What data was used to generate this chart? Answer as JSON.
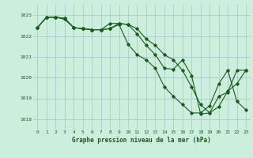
{
  "title": "Graphe pression niveau de la mer (hPa)",
  "bg_color": "#cceedd",
  "grid_color": "#aacccc",
  "line_color": "#1a5c1a",
  "ylim": [
    1017.5,
    1023.5
  ],
  "xlim": [
    -0.5,
    23.5
  ],
  "yticks": [
    1018,
    1019,
    1020,
    1021,
    1022,
    1023
  ],
  "xticks": [
    0,
    1,
    2,
    3,
    4,
    5,
    6,
    7,
    8,
    9,
    10,
    11,
    12,
    13,
    14,
    15,
    16,
    17,
    18,
    19,
    20,
    21,
    22,
    23
  ],
  "series": [
    [
      1022.4,
      1022.9,
      1022.9,
      1022.85,
      1022.4,
      1022.35,
      1022.3,
      1022.3,
      1022.35,
      1022.6,
      1022.55,
      1022.1,
      1021.55,
      1021.1,
      1020.45,
      1020.4,
      1020.85,
      1020.1,
      1018.25,
      1018.3,
      1019.1,
      1019.3,
      1020.35,
      1020.35
    ],
    [
      1022.4,
      1022.9,
      1022.9,
      1022.85,
      1022.4,
      1022.35,
      1022.3,
      1022.3,
      1022.6,
      1022.6,
      1022.55,
      1022.35,
      1021.85,
      1021.55,
      1021.1,
      1020.85,
      1020.35,
      1019.55,
      1018.7,
      1018.3,
      1018.6,
      1019.35,
      1019.7,
      1020.35
    ],
    [
      1022.4,
      1022.9,
      1022.9,
      1022.8,
      1022.4,
      1022.35,
      1022.3,
      1022.3,
      1022.35,
      1022.55,
      1021.6,
      1021.1,
      1020.85,
      1020.45,
      1019.55,
      1019.1,
      1018.7,
      1018.3,
      1018.3,
      1018.65,
      1019.7,
      1020.35,
      1018.85,
      1018.45
    ]
  ]
}
